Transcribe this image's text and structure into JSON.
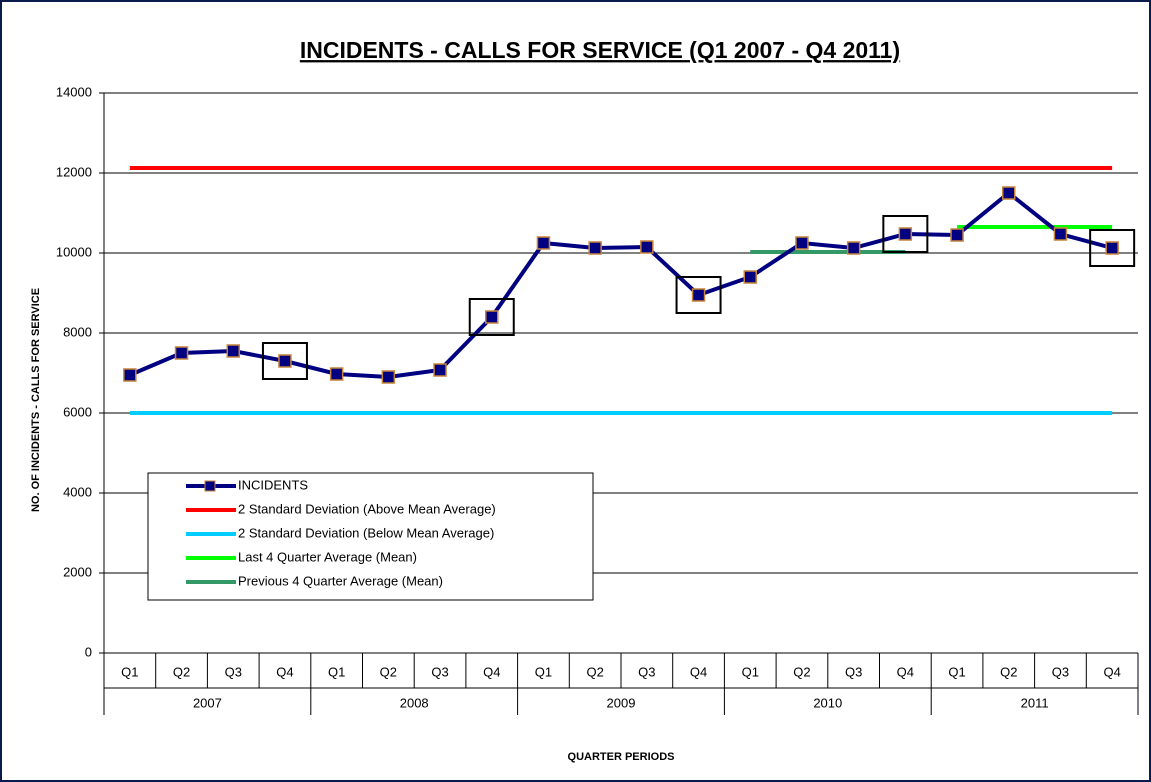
{
  "chart_data": {
    "type": "line",
    "title": "INCIDENTS - CALLS FOR SERVICE (Q1 2007 - Q4 2011)",
    "y_label": "NO. OF INCIDENTS - CALLS FOR SERVICE",
    "x_label": "QUARTER PERIODS",
    "categories": [
      "Q1",
      "Q2",
      "Q3",
      "Q4",
      "Q1",
      "Q2",
      "Q3",
      "Q4",
      "Q1",
      "Q2",
      "Q3",
      "Q4",
      "Q1",
      "Q2",
      "Q3",
      "Q4",
      "Q1",
      "Q2",
      "Q3",
      "Q4"
    ],
    "category_groups": [
      "2007",
      "2008",
      "2009",
      "2010",
      "2011"
    ],
    "series": [
      {
        "name": "INCIDENTS",
        "color": "#000080",
        "marker_color": "#000080",
        "marker_edge": "#c8843c",
        "values": [
          6950,
          7500,
          7550,
          7300,
          6975,
          6900,
          7075,
          8400,
          10250,
          10125,
          10150,
          8950,
          9400,
          10250,
          10125,
          10475,
          10450,
          11500,
          10475,
          10125
        ]
      },
      {
        "name": "2 Standard Deviation (Above Mean Average)",
        "color": "#ff0000",
        "values": [
          12125,
          12125,
          12125,
          12125,
          12125,
          12125,
          12125,
          12125,
          12125,
          12125,
          12125,
          12125,
          12125,
          12125,
          12125,
          12125,
          12125,
          12125,
          12125,
          12125
        ]
      },
      {
        "name": "2 Standard Deviation (Below Mean Average)",
        "color": "#00ccff",
        "values": [
          6000,
          6000,
          6000,
          6000,
          6000,
          6000,
          6000,
          6000,
          6000,
          6000,
          6000,
          6000,
          6000,
          6000,
          6000,
          6000,
          6000,
          6000,
          6000,
          6000
        ]
      },
      {
        "name": "Last 4 Quarter Average (Mean)",
        "color": "#00ff00",
        "values": [
          null,
          null,
          null,
          null,
          null,
          null,
          null,
          null,
          null,
          null,
          null,
          null,
          null,
          null,
          null,
          null,
          10650,
          10650,
          10650,
          10650
        ]
      },
      {
        "name": "Previous 4 Quarter Average (Mean)",
        "color": "#339966",
        "values": [
          null,
          null,
          null,
          null,
          null,
          null,
          null,
          null,
          null,
          null,
          null,
          null,
          10025,
          10025,
          10025,
          10025,
          null,
          null,
          null,
          null
        ]
      }
    ],
    "ylim": [
      0,
      14000
    ],
    "yticks": [
      0,
      2000,
      4000,
      6000,
      8000,
      10000,
      12000,
      14000
    ],
    "grid": true
  }
}
